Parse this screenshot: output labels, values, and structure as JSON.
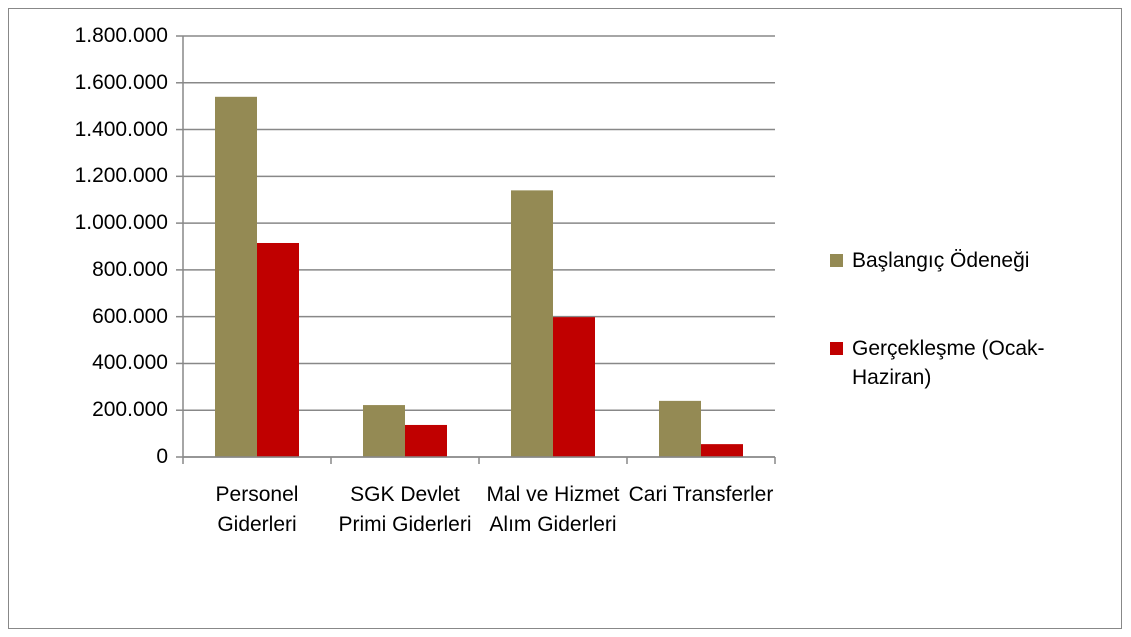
{
  "chart_data": {
    "type": "bar",
    "categories": [
      "Personel Giderleri",
      "SGK Devlet Primi Giderleri",
      "Mal ve Hizmet Alım Giderleri",
      "Cari Transferler"
    ],
    "series": [
      {
        "name": "Başlangıç Ödeneği",
        "color": "#948a54",
        "values": [
          1540000,
          222000,
          1140000,
          240000
        ]
      },
      {
        "name": "Gerçekleşme (Ocak-Haziran)",
        "color": "#c00000",
        "values": [
          915000,
          137000,
          598000,
          55000
        ]
      }
    ],
    "ylim": [
      0,
      1800000
    ],
    "yticks": [
      0,
      {
        "value": 200000,
        "label": "200.000"
      },
      {
        "value": 400000,
        "label": "400.000"
      },
      {
        "value": 600000,
        "label": "600.000"
      },
      {
        "value": 800000,
        "label": "800.000"
      },
      {
        "value": 1000000,
        "label": "1.000.000"
      },
      {
        "value": 1200000,
        "label": "1.200.000"
      },
      {
        "value": 1400000,
        "label": "1.400.000"
      },
      {
        "value": 1600000,
        "label": "1.600.000"
      },
      {
        "value": 1800000,
        "label": "1.800.000"
      }
    ],
    "grid": true,
    "legend": "right"
  }
}
